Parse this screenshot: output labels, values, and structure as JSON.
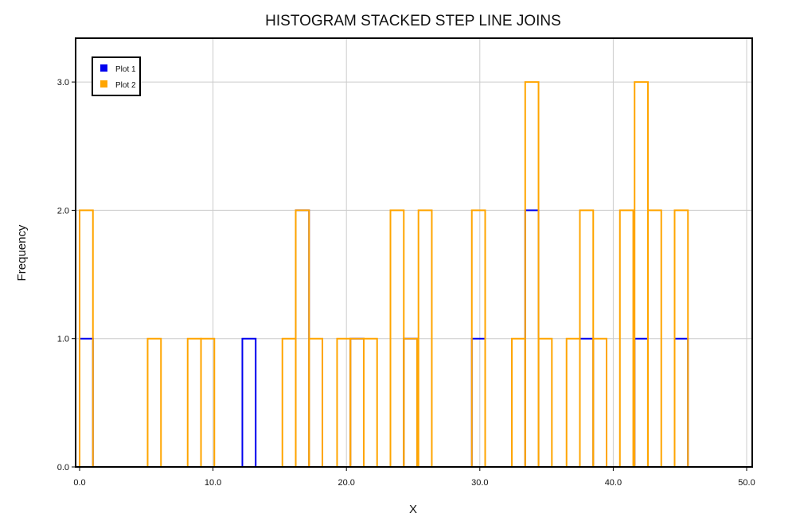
{
  "chart_data": {
    "type": "histogram-step",
    "title": "HISTOGRAM STACKED STEP LINE JOINS",
    "xlabel": "X",
    "ylabel": "Frequency",
    "xlim": [
      0,
      50
    ],
    "ylim": [
      0,
      3.3
    ],
    "x_ticks": [
      0,
      10,
      20,
      30,
      40,
      50
    ],
    "x_tick_labels": [
      "0.0",
      "10.0",
      "20.0",
      "30.0",
      "40.0",
      "50.0"
    ],
    "y_ticks": [
      0,
      1,
      2,
      3
    ],
    "y_tick_labels": [
      "0.0",
      "1.0",
      "2.0",
      "3.0"
    ],
    "grid": true,
    "legend_position": "top-left",
    "bin_width": 1.0,
    "series": [
      {
        "name": "Plot 1",
        "color": "#0000ee",
        "bins": [
          {
            "x": 0.0,
            "y": 1
          },
          {
            "x": 12.2,
            "y": 1
          },
          {
            "x": 16.2,
            "y": 2
          },
          {
            "x": 20.3,
            "y": 1
          },
          {
            "x": 24.3,
            "y": 1
          },
          {
            "x": 29.4,
            "y": 1
          },
          {
            "x": 33.4,
            "y": 2
          },
          {
            "x": 37.5,
            "y": 1
          },
          {
            "x": 41.6,
            "y": 1
          },
          {
            "x": 44.6,
            "y": 1
          }
        ]
      },
      {
        "name": "Plot 2",
        "color": "#ffa500",
        "bins": [
          {
            "x": 0.0,
            "y": 2
          },
          {
            "x": 5.1,
            "y": 1
          },
          {
            "x": 8.1,
            "y": 1
          },
          {
            "x": 9.1,
            "y": 1
          },
          {
            "x": 15.2,
            "y": 1
          },
          {
            "x": 16.2,
            "y": 2
          },
          {
            "x": 17.2,
            "y": 1
          },
          {
            "x": 19.3,
            "y": 1
          },
          {
            "x": 20.3,
            "y": 1
          },
          {
            "x": 21.3,
            "y": 1
          },
          {
            "x": 23.3,
            "y": 2
          },
          {
            "x": 24.3,
            "y": 1
          },
          {
            "x": 25.4,
            "y": 2
          },
          {
            "x": 29.4,
            "y": 2
          },
          {
            "x": 32.4,
            "y": 1
          },
          {
            "x": 33.4,
            "y": 3
          },
          {
            "x": 34.4,
            "y": 1
          },
          {
            "x": 36.5,
            "y": 1
          },
          {
            "x": 37.5,
            "y": 2
          },
          {
            "x": 38.5,
            "y": 1
          },
          {
            "x": 40.5,
            "y": 2
          },
          {
            "x": 41.6,
            "y": 3
          },
          {
            "x": 42.6,
            "y": 2
          },
          {
            "x": 44.6,
            "y": 2
          }
        ]
      }
    ]
  }
}
